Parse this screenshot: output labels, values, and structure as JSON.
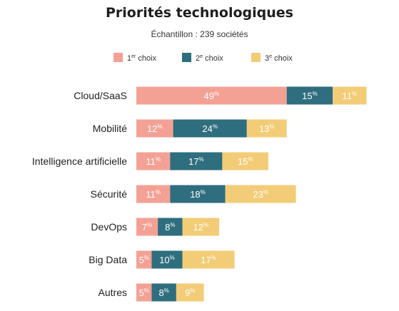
{
  "chart_data": {
    "type": "bar",
    "orientation": "horizontal",
    "stacked": true,
    "title": "Priorités technologiques",
    "subtitle": "Échantillon : 239 sociétés",
    "unit": "%",
    "categories": [
      "Cloud/SaaS",
      "Mobilité",
      "Intelligence artificielle",
      "Sécurité",
      "DevOps",
      "Big Data",
      "Autres"
    ],
    "series": [
      {
        "name": "1er choix",
        "color": "#f4a195",
        "values": [
          49,
          12,
          11,
          11,
          7,
          5,
          5
        ]
      },
      {
        "name": "2e choix",
        "color": "#2f6e7e",
        "values": [
          15,
          24,
          17,
          18,
          8,
          10,
          8
        ]
      },
      {
        "name": "3e choix",
        "color": "#f3cc77",
        "values": [
          11,
          13,
          15,
          23,
          12,
          17,
          9
        ]
      }
    ],
    "legend": {
      "position": "top",
      "entries": [
        {
          "base": "1",
          "sup": "er",
          "rest": " choix"
        },
        {
          "base": "2",
          "sup": "e",
          "rest": " choix"
        },
        {
          "base": "3",
          "sup": "e",
          "rest": " choix"
        }
      ]
    },
    "grid": false,
    "axes_visible": false
  }
}
